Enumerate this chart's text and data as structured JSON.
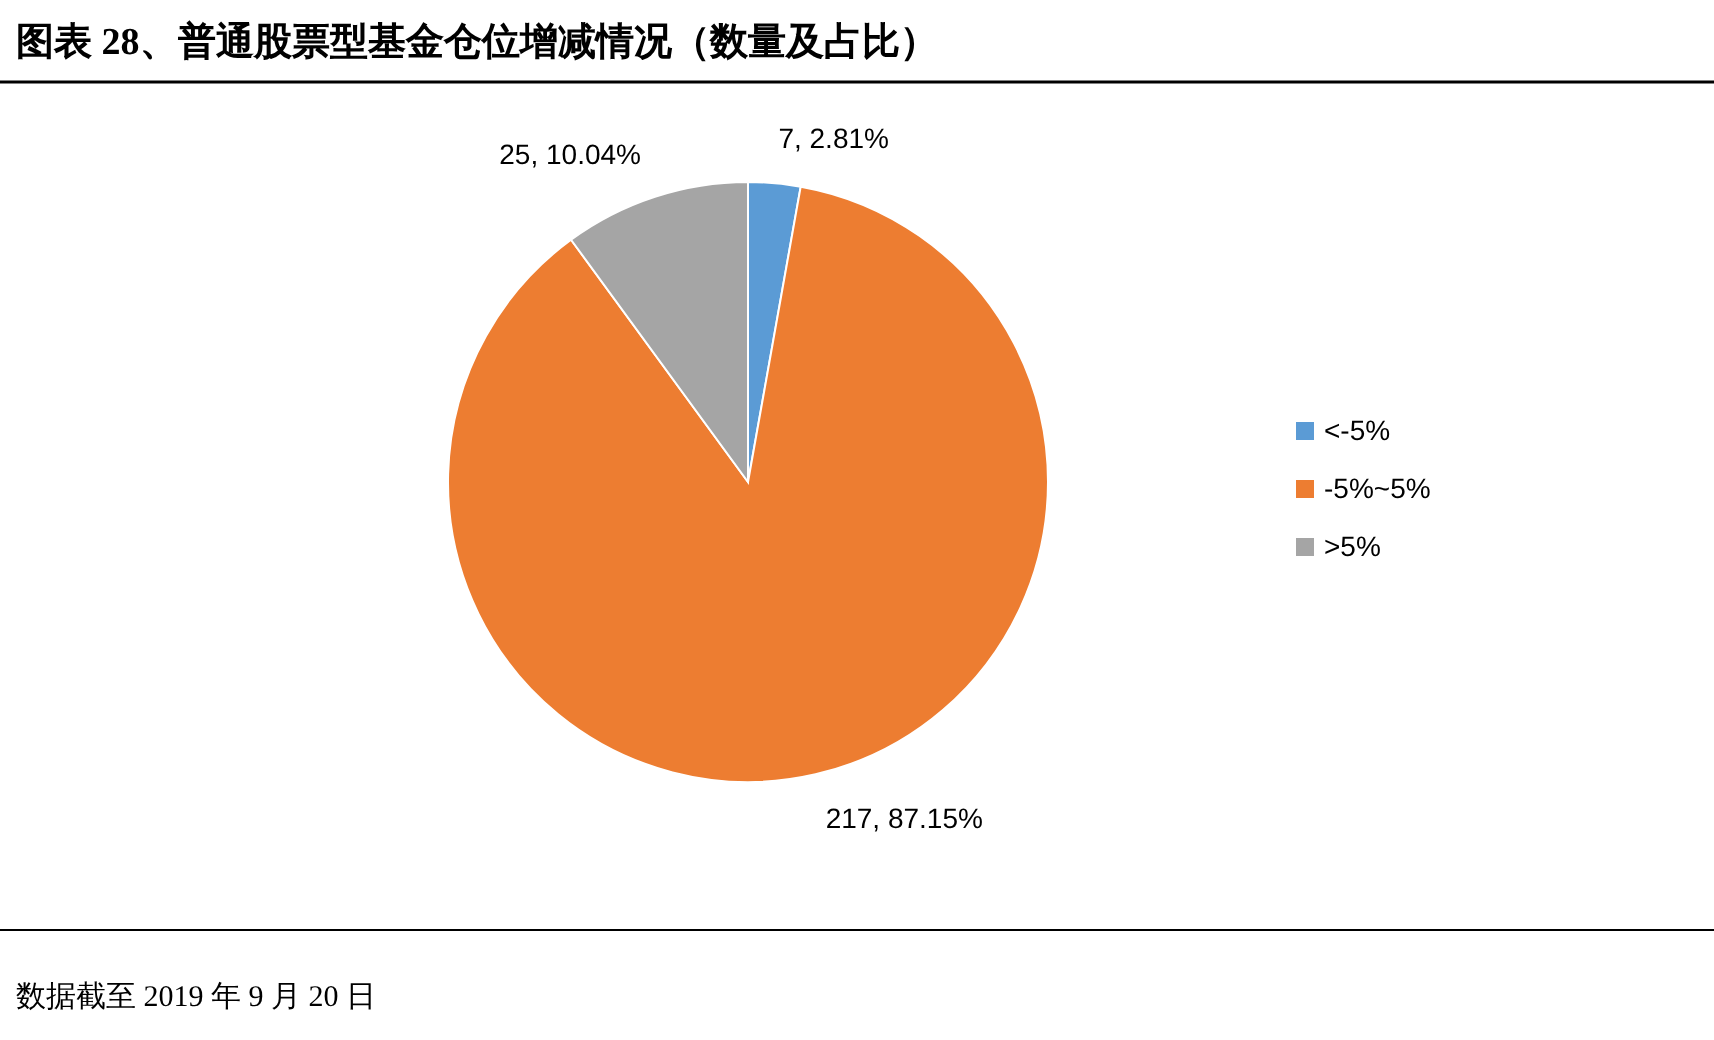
{
  "chart_data": {
    "type": "pie",
    "title": "图表 28、普通股票型基金仓位增减情况（数量及占比）",
    "categories": [
      "<-5%",
      "-5%~5%",
      ">5%"
    ],
    "values": [
      7,
      217,
      25
    ],
    "colors": [
      "#5b9bd5",
      "#ed7d31",
      "#a5a5a5"
    ],
    "value_labels": [
      "7, 2.81%",
      "217, 87.15%",
      "25, 10.04%"
    ],
    "legend": "right",
    "annotations": [
      "数据截至 2019 年 9 月 20 日"
    ]
  }
}
